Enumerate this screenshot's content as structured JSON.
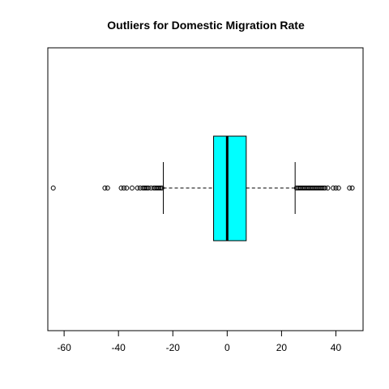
{
  "chart_data": {
    "type": "boxplot",
    "orientation": "horizontal",
    "title": "Outliers for  Domestic  Migration Rate",
    "xlabel": "",
    "ylabel": "",
    "xlim": [
      -66,
      50
    ],
    "x_ticks": [
      -60,
      -40,
      -20,
      0,
      20,
      40
    ],
    "x_tick_labels": [
      "-60",
      "-40",
      "-20",
      "0",
      "20",
      "40"
    ],
    "box": {
      "whisker_low": -23.5,
      "q1": -5,
      "median": 0,
      "q3": 7,
      "whisker_high": 25,
      "fill_color": "#00FFFF"
    },
    "outliers": [
      -64,
      -45,
      -44,
      -39,
      -38,
      -37,
      -35,
      -33,
      -32,
      -31,
      -30.5,
      -30,
      -29.5,
      -29,
      -28,
      -27,
      -26.5,
      -26,
      -25.5,
      -25,
      -24.5,
      -24,
      25.5,
      26,
      26.5,
      27,
      27.5,
      28,
      28.5,
      29,
      29.5,
      30,
      30.5,
      31,
      31.5,
      32,
      32.5,
      33,
      33.5,
      34,
      34.5,
      35,
      35.5,
      36,
      37,
      39,
      40,
      41,
      45,
      46
    ]
  }
}
